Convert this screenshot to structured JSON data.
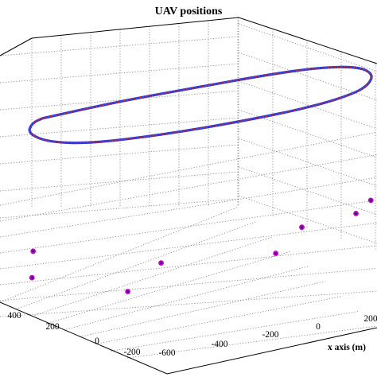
{
  "chart_data": {
    "type": "scatter",
    "title": "UAV positions",
    "xlabel": "x axis (m)",
    "ylabel": "",
    "zlabel": "",
    "x_ticks": [
      "-600",
      "-400",
      "-200",
      "0",
      "200"
    ],
    "y_ticks": [
      "400",
      "200",
      "0",
      "-200"
    ],
    "grid": true,
    "series": [
      {
        "kind": "trajectory",
        "color": "#1f3fe0",
        "note_color_2": "#e8202a",
        "points_xy": [
          [
            -620,
            500
          ],
          [
            -400,
            560
          ],
          [
            -200,
            600
          ],
          [
            0,
            640
          ],
          [
            150,
            660
          ],
          [
            260,
            650
          ],
          [
            300,
            610
          ],
          [
            290,
            560
          ],
          [
            250,
            520
          ],
          [
            140,
            470
          ],
          [
            -60,
            420
          ],
          [
            -280,
            380
          ],
          [
            -480,
            360
          ],
          [
            -600,
            380
          ],
          [
            -660,
            430
          ],
          [
            -650,
            480
          ],
          [
            -620,
            500
          ]
        ]
      },
      {
        "kind": "ground_nodes",
        "color": "#cc00cc",
        "points_xy": [
          [
            -280,
            120
          ],
          [
            110,
            250
          ],
          [
            260,
            300
          ],
          [
            300,
            360
          ],
          [
            -640,
            90
          ],
          [
            -370,
            -10
          ],
          [
            40,
            130
          ],
          [
            -640,
            220
          ]
        ]
      }
    ],
    "colors": {
      "trajectory_a": "#1f3fe0",
      "trajectory_b": "#e8202a",
      "markers": "#cc00cc",
      "marker_core": "#1a1a66"
    }
  }
}
